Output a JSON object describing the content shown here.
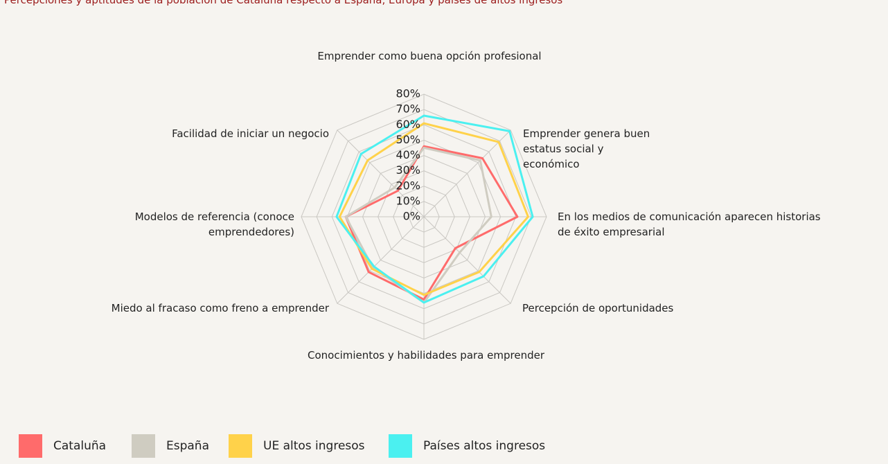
{
  "chart_data": {
    "type": "radar",
    "title": "Percepciones y aptitudes de la población de Cataluña respecto a España, Europa y países de altos ingresos",
    "categories": [
      "Emprender como buena opción profesional",
      "Emprender genera buen estatus social y económico",
      "En los medios de comunicación aparecen historias de éxito empresarial",
      "Percepción de oportunidades",
      "Conocimientos y habilidades para emprender",
      "Miedo al fracaso como freno a emprender",
      "Modelos de referencia (conoce emprendedores)",
      "Facilidad de iniciar un negocio"
    ],
    "series": [
      {
        "name": "Cataluña",
        "color": "#ff6b6b",
        "values": [
          46,
          54,
          61,
          29,
          54,
          51,
          51,
          24
        ]
      },
      {
        "name": "España",
        "color": "#cfccc1",
        "values": [
          45,
          52,
          44,
          33,
          56,
          47,
          51,
          27
        ]
      },
      {
        "name": "UE altos ingresos",
        "color": "#ffd24a",
        "values": [
          61,
          69,
          68,
          51,
          51,
          48,
          55,
          52
        ]
      },
      {
        "name": "Países altos ingresos",
        "color": "#4bf0f0",
        "values": [
          66,
          79,
          71,
          55,
          56,
          46,
          57,
          58
        ]
      }
    ],
    "rlim": [
      0,
      80
    ],
    "rticks": [
      {
        "value": 0,
        "label": "0%"
      },
      {
        "value": 10,
        "label": "10%"
      },
      {
        "value": 20,
        "label": "20%"
      },
      {
        "value": 30,
        "label": "30%"
      },
      {
        "value": 40,
        "label": "40%"
      },
      {
        "value": 50,
        "label": "50%"
      },
      {
        "value": 60,
        "label": "60%"
      },
      {
        "value": 70,
        "label": "70%"
      },
      {
        "value": 80,
        "label": "80%"
      }
    ],
    "grid": true
  }
}
